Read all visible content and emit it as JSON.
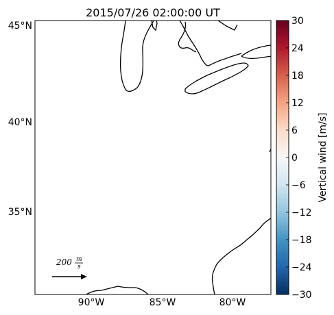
{
  "title": "2015/07/26 02:00:00 UT",
  "lat_labels": [
    "45°N",
    "40°N",
    "35°N"
  ],
  "lon_labels": [
    "90°W",
    "85°W",
    "80°W"
  ],
  "colorbar": {
    "label": "Vertical wind [m/s]",
    "ticks": [
      "30",
      "24",
      "18",
      "12",
      "6",
      "0",
      "−6",
      "−12",
      "−18",
      "−24",
      "−30"
    ],
    "min": -30,
    "max": 30,
    "colormap": "RdBu_r"
  },
  "quiver_key": {
    "value": "200",
    "unit_num": "m",
    "unit_den": "s"
  }
}
